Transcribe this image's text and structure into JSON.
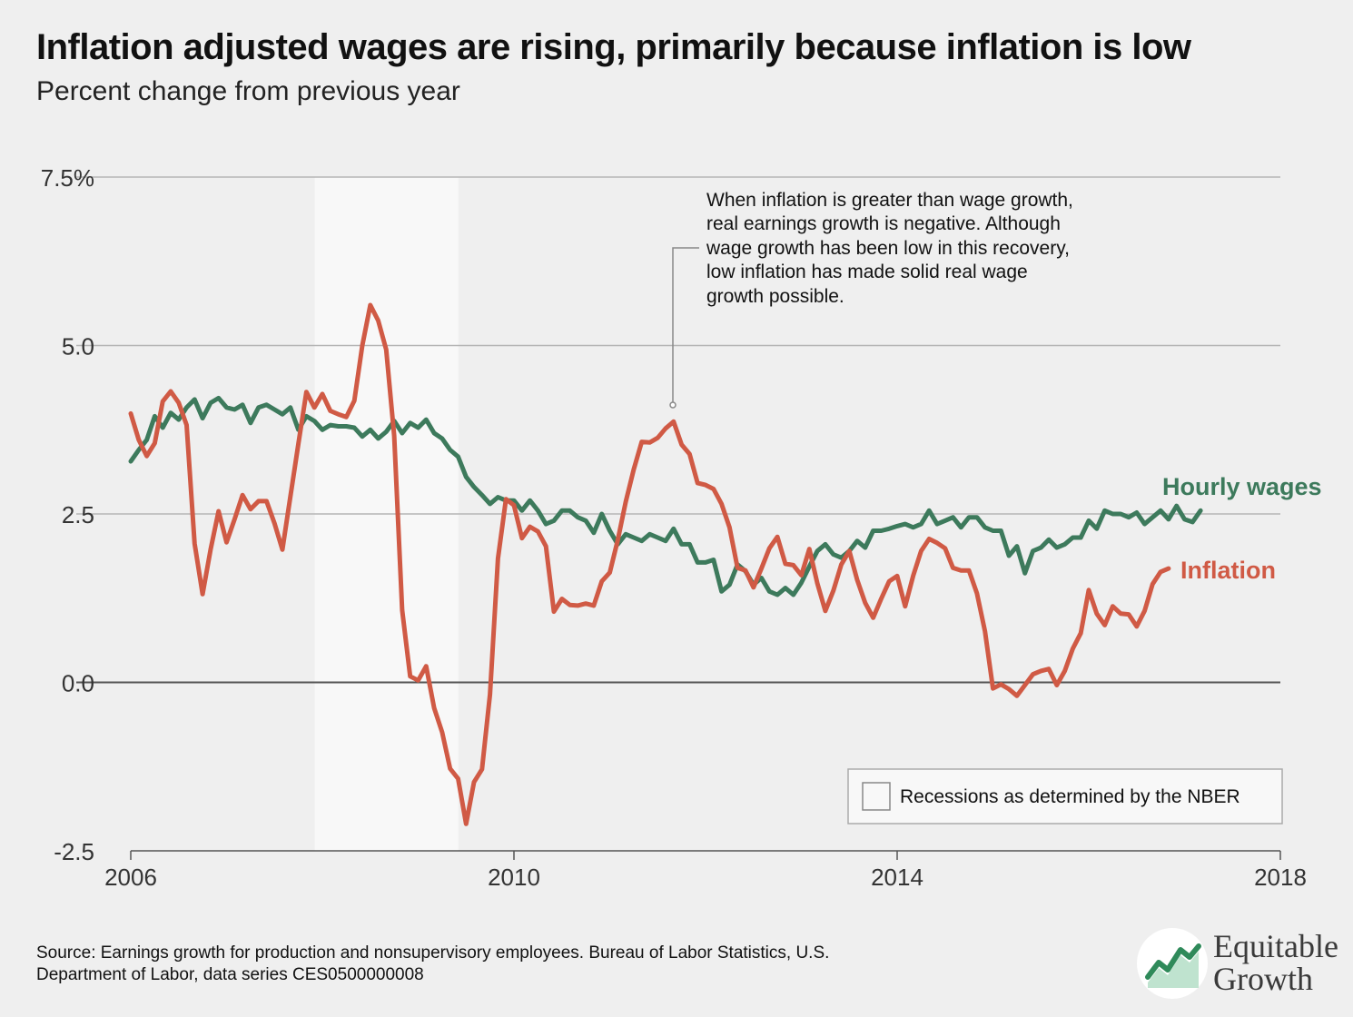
{
  "title": "Inflation adjusted wages are rising, primarily because inflation is low",
  "subtitle": "Percent change from previous year",
  "annotation": [
    "When inflation is greater than wage growth,",
    "real earnings growth is negative. Although",
    "wage growth has been low in this recovery,",
    "low inflation has made solid real wage",
    "growth possible."
  ],
  "legend_label": "Recessions as determined by the NBER",
  "source": [
    "Source: Earnings growth for production and nonsupervisory employees. Bureau of Labor Statistics, U.S.",
    "Department of Labor, data series CES0500000008"
  ],
  "logo": {
    "line1": "Equitable",
    "line2": "Growth"
  },
  "colors": {
    "wages": "#3d7a5c",
    "inflation": "#d05a45",
    "background": "#efefef",
    "recession": "#f8f8f8"
  },
  "chart_data": {
    "type": "line",
    "title": "Inflation adjusted wages are rising, primarily because inflation is low",
    "subtitle": "Percent change from previous year",
    "xlim": [
      2006,
      2018
    ],
    "ylim": [
      -2.5,
      7.5
    ],
    "x_ticks": [
      2006,
      2010,
      2014,
      2018
    ],
    "x_tick_labels": [
      "2006",
      "2010",
      "2014",
      "2018"
    ],
    "y_ticks": [
      -2.5,
      0.0,
      2.5,
      5.0,
      7.5
    ],
    "y_tick_labels": [
      "-2.5",
      "0.0",
      "2.5",
      "5.0",
      "7.5%"
    ],
    "grid": true,
    "shaded_regions": [
      {
        "start": 2007.92,
        "end": 2009.42,
        "label": "Recessions as determined by the NBER"
      }
    ],
    "x_start": "2006-01",
    "x_step": "monthly",
    "series": [
      {
        "name": "Hourly wages",
        "color": "#3d7a5c",
        "values": [
          3.28,
          3.45,
          3.6,
          3.95,
          3.78,
          4.0,
          3.9,
          4.08,
          4.2,
          3.92,
          4.15,
          4.22,
          4.08,
          4.05,
          4.12,
          3.85,
          4.08,
          4.12,
          4.05,
          3.98,
          4.08,
          3.75,
          3.95,
          3.88,
          3.75,
          3.82,
          3.8,
          3.8,
          3.78,
          3.65,
          3.75,
          3.62,
          3.72,
          3.88,
          3.7,
          3.85,
          3.78,
          3.9,
          3.7,
          3.62,
          3.45,
          3.35,
          3.05,
          2.9,
          2.78,
          2.65,
          2.75,
          2.7,
          2.7,
          2.55,
          2.7,
          2.55,
          2.35,
          2.4,
          2.55,
          2.55,
          2.45,
          2.4,
          2.22,
          2.5,
          2.25,
          2.05,
          2.2,
          2.15,
          2.1,
          2.2,
          2.15,
          2.1,
          2.28,
          2.05,
          2.05,
          1.78,
          1.78,
          1.82,
          1.35,
          1.45,
          1.75,
          1.65,
          1.45,
          1.55,
          1.35,
          1.3,
          1.4,
          1.3,
          1.48,
          1.72,
          1.95,
          2.05,
          1.9,
          1.85,
          1.95,
          2.1,
          2.0,
          2.25,
          2.25,
          2.28,
          2.32,
          2.35,
          2.3,
          2.35,
          2.55,
          2.35,
          2.4,
          2.45,
          2.3,
          2.45,
          2.45,
          2.3,
          2.25,
          2.25,
          1.88,
          2.02,
          1.62,
          1.95,
          2.0,
          2.12,
          2.0,
          2.05,
          2.15,
          2.15,
          2.4,
          2.28,
          2.55,
          2.5,
          2.5,
          2.45,
          2.52,
          2.35,
          2.45,
          2.55,
          2.42,
          2.62,
          2.42,
          2.38,
          2.55
        ]
      },
      {
        "name": "Inflation",
        "color": "#d05a45",
        "values": [
          3.99,
          3.6,
          3.36,
          3.55,
          4.17,
          4.32,
          4.15,
          3.82,
          2.06,
          1.31,
          1.97,
          2.54,
          2.08,
          2.42,
          2.78,
          2.57,
          2.69,
          2.69,
          2.36,
          1.97,
          2.76,
          3.54,
          4.31,
          4.08,
          4.28,
          4.03,
          3.98,
          3.94,
          4.18,
          5.0,
          5.6,
          5.37,
          4.94,
          3.66,
          1.07,
          0.09,
          0.03,
          0.24,
          -0.38,
          -0.74,
          -1.28,
          -1.43,
          -2.1,
          -1.48,
          -1.29,
          -0.18,
          1.84,
          2.72,
          2.63,
          2.14,
          2.31,
          2.24,
          2.02,
          1.05,
          1.24,
          1.15,
          1.14,
          1.17,
          1.14,
          1.5,
          1.63,
          2.11,
          2.68,
          3.16,
          3.57,
          3.56,
          3.63,
          3.77,
          3.87,
          3.53,
          3.39,
          2.96,
          2.93,
          2.87,
          2.65,
          2.3,
          1.7,
          1.66,
          1.41,
          1.69,
          1.99,
          2.16,
          1.76,
          1.74,
          1.59,
          1.98,
          1.47,
          1.06,
          1.36,
          1.75,
          1.95,
          1.52,
          1.18,
          0.96,
          1.24,
          1.5,
          1.58,
          1.13,
          1.58,
          1.95,
          2.13,
          2.07,
          1.99,
          1.7,
          1.66,
          1.66,
          1.32,
          0.76,
          -0.09,
          -0.03,
          -0.1,
          -0.2,
          -0.04,
          0.12,
          0.17,
          0.2,
          -0.04,
          0.17,
          0.5,
          0.73,
          1.37,
          1.02,
          0.85,
          1.13,
          1.02,
          1.01,
          0.83,
          1.06,
          1.46,
          1.64,
          1.69
        ]
      }
    ],
    "series_labels": {
      "wages": "Hourly wages",
      "inflation": "Inflation"
    }
  }
}
